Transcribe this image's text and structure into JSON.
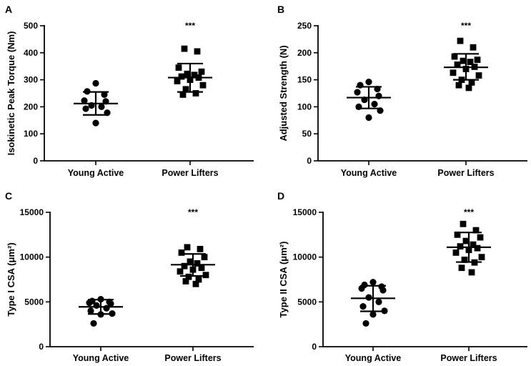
{
  "chart_data": [
    {
      "panel": "A",
      "type": "scatter",
      "ylabel": "Isokinetic Peak Torque (Nm)",
      "ylim": [
        0,
        500
      ],
      "yticks": [
        0,
        100,
        200,
        300,
        400,
        500
      ],
      "categories": [
        "Young Active",
        "Power Lifters"
      ],
      "significance": "***",
      "series": [
        {
          "name": "Young Active",
          "marker": "circle",
          "values": [
            287,
            257,
            245,
            223,
            220,
            205,
            200,
            193,
            178,
            140
          ],
          "mean": 212,
          "sd_low": 170,
          "sd_high": 255
        },
        {
          "name": "Power Lifters",
          "marker": "square",
          "values": [
            415,
            405,
            345,
            330,
            322,
            318,
            312,
            308,
            300,
            295,
            280,
            265,
            250,
            245
          ],
          "mean": 308,
          "sd_low": 255,
          "sd_high": 360
        }
      ]
    },
    {
      "panel": "B",
      "type": "scatter",
      "ylabel": "Adjusted Strength (N)",
      "ylim": [
        0,
        250
      ],
      "yticks": [
        0,
        50,
        100,
        150,
        200,
        250
      ],
      "categories": [
        "Young Active",
        "Power Lifters"
      ],
      "significance": "***",
      "series": [
        {
          "name": "Young Active",
          "marker": "circle",
          "values": [
            146,
            140,
            133,
            127,
            120,
            113,
            105,
            100,
            93,
            80
          ],
          "mean": 117,
          "sd_low": 97,
          "sd_high": 137
        },
        {
          "name": "Power Lifters",
          "marker": "square",
          "values": [
            222,
            210,
            193,
            187,
            185,
            183,
            178,
            174,
            170,
            163,
            158,
            150,
            145,
            140,
            135
          ],
          "mean": 173,
          "sd_low": 150,
          "sd_high": 198
        }
      ]
    },
    {
      "panel": "C",
      "type": "scatter",
      "ylabel": "Type I CSA (μm²)",
      "ylim": [
        0,
        15000
      ],
      "yticks": [
        0,
        5000,
        10000,
        15000
      ],
      "categories": [
        "Young Active",
        "Power Lifters"
      ],
      "significance": "***",
      "series": [
        {
          "name": "Young Active",
          "marker": "circle",
          "values": [
            5300,
            5100,
            5000,
            4900,
            4800,
            4600,
            4300,
            4000,
            3700,
            3600,
            2600
          ],
          "mean": 4450,
          "sd_low": 3650,
          "sd_high": 5250
        },
        {
          "name": "Power Lifters",
          "marker": "square",
          "values": [
            11100,
            10900,
            10500,
            10000,
            9500,
            9300,
            9000,
            8800,
            8600,
            8400,
            8000,
            7800,
            7500,
            7300,
            7000
          ],
          "mean": 9150,
          "sd_low": 7900,
          "sd_high": 10350
        }
      ]
    },
    {
      "panel": "D",
      "type": "scatter",
      "ylabel": "Type II CSA (μm²)",
      "ylim": [
        0,
        15000
      ],
      "yticks": [
        0,
        5000,
        10000,
        15000
      ],
      "categories": [
        "Young Active",
        "Power Lifters"
      ],
      "significance": "***",
      "series": [
        {
          "name": "Young Active",
          "marker": "circle",
          "values": [
            7200,
            6900,
            6700,
            6500,
            6300,
            5500,
            5000,
            4500,
            4000,
            3600,
            2600
          ],
          "mean": 5400,
          "sd_low": 3950,
          "sd_high": 6800
        },
        {
          "name": "Power Lifters",
          "marker": "square",
          "values": [
            13700,
            13000,
            12500,
            12200,
            11800,
            11400,
            11200,
            11000,
            10800,
            10500,
            10000,
            9700,
            9400,
            8800,
            8300
          ],
          "mean": 11100,
          "sd_low": 9450,
          "sd_high": 12750
        }
      ]
    }
  ]
}
